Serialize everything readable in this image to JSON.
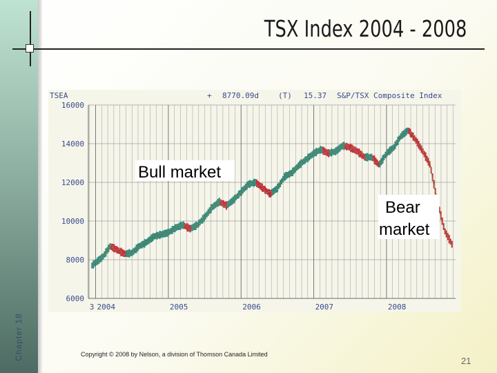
{
  "slide": {
    "title": "TSX Index 2004 - 2008",
    "chapter": "Chapter 18",
    "copyright": "Copyright © 2008 by Nelson, a division of Thomson Canada Limited",
    "page_number": "21"
  },
  "chart_data": {
    "type": "line",
    "header": {
      "symbol": "TSEA",
      "plus": "+",
      "value": "8770.09d",
      "flag": "(T)",
      "change": "15.37",
      "index_name": "S&P/TSX Composite Index"
    },
    "x_ticks": [
      "3",
      "2004",
      "2005",
      "2006",
      "2007",
      "2008"
    ],
    "y_ticks": [
      "16000",
      "14000",
      "12000",
      "10000",
      "8000",
      "6000"
    ],
    "ylim": [
      6000,
      16000
    ],
    "grid": true,
    "colors": {
      "bull": "#2a8a82",
      "bear": "#c8283c",
      "average": "#8a7a3a"
    },
    "annotations": [
      {
        "text": "Bull market"
      },
      {
        "text": "Bear",
        "text2": "market"
      }
    ],
    "series": [
      {
        "x": [
          2003.95,
          2004.1,
          2004.2,
          2004.3,
          2004.4,
          2004.5,
          2004.6,
          2004.7,
          2004.8,
          2004.9,
          2005.0,
          2005.1,
          2005.2,
          2005.3,
          2005.4,
          2005.5,
          2005.6,
          2005.7,
          2005.8,
          2005.9,
          2006.0,
          2006.1,
          2006.2,
          2006.3,
          2006.4,
          2006.5,
          2006.6,
          2006.7,
          2006.8,
          2006.9,
          2007.0,
          2007.1,
          2007.2,
          2007.3,
          2007.4,
          2007.5,
          2007.6,
          2007.7,
          2007.8,
          2007.9,
          2008.0,
          2008.1,
          2008.2,
          2008.3,
          2008.4,
          2008.5,
          2008.6,
          2008.7,
          2008.8,
          2008.9
        ],
        "values": [
          7700,
          8150,
          8700,
          8500,
          8300,
          8350,
          8700,
          8900,
          9200,
          9300,
          9400,
          9650,
          9800,
          9600,
          9800,
          10200,
          10700,
          11000,
          10800,
          11100,
          11500,
          11900,
          12000,
          11700,
          11400,
          11700,
          12300,
          12500,
          12900,
          13200,
          13500,
          13700,
          13500,
          13600,
          13900,
          13800,
          13600,
          13300,
          13300,
          12900,
          13500,
          13800,
          14400,
          14700,
          14200,
          13600,
          12900,
          11000,
          9500,
          8800
        ]
      }
    ]
  }
}
